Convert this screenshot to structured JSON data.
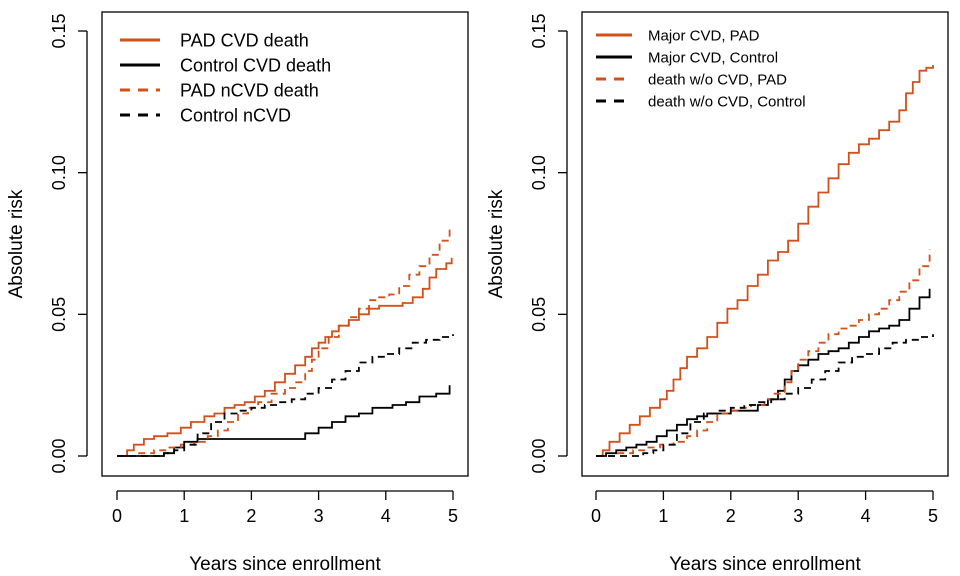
{
  "colors": {
    "pad": "#d2501a",
    "control": "#000000"
  },
  "chart_data": [
    {
      "type": "line",
      "xlabel": "Years since enrollment",
      "ylabel": "Absolute risk",
      "xlim": [
        0,
        5
      ],
      "ylim": [
        0,
        0.15
      ],
      "xticks": [
        "0",
        "1",
        "2",
        "3",
        "4",
        "5"
      ],
      "yticks": [
        "0.00",
        "0.05",
        "0.10",
        "0.15"
      ],
      "grid": false,
      "legend_position": "top-left",
      "series": [
        {
          "name": "PAD CVD death",
          "style": "solid",
          "color": "pad",
          "x": [
            0,
            0.15,
            0.25,
            0.4,
            0.55,
            0.75,
            0.95,
            1.1,
            1.3,
            1.45,
            1.6,
            1.75,
            1.9,
            2.05,
            2.2,
            2.35,
            2.5,
            2.65,
            2.8,
            2.9,
            3.0,
            3.1,
            3.2,
            3.3,
            3.45,
            3.6,
            3.75,
            3.9,
            4.05,
            4.25,
            4.4,
            4.55,
            4.65,
            4.75,
            4.9,
            4.98
          ],
          "y": [
            0,
            0.002,
            0.004,
            0.006,
            0.007,
            0.008,
            0.01,
            0.012,
            0.014,
            0.015,
            0.017,
            0.018,
            0.019,
            0.021,
            0.023,
            0.026,
            0.029,
            0.032,
            0.035,
            0.038,
            0.04,
            0.042,
            0.044,
            0.046,
            0.048,
            0.05,
            0.052,
            0.053,
            0.053,
            0.054,
            0.056,
            0.059,
            0.063,
            0.066,
            0.068,
            0.07
          ]
        },
        {
          "name": "Control CVD death",
          "style": "solid",
          "color": "control",
          "x": [
            0,
            0.7,
            0.85,
            1.0,
            1.2,
            1.7,
            2.0,
            2.6,
            2.8,
            3.0,
            3.2,
            3.4,
            3.6,
            3.8,
            4.1,
            4.3,
            4.5,
            4.75,
            4.95
          ],
          "y": [
            0,
            0.001,
            0.003,
            0.005,
            0.006,
            0.006,
            0.006,
            0.006,
            0.008,
            0.01,
            0.012,
            0.014,
            0.015,
            0.017,
            0.018,
            0.019,
            0.021,
            0.022,
            0.025
          ]
        },
        {
          "name": "PAD nCVD death",
          "style": "dashed",
          "color": "pad",
          "x": [
            0,
            0.3,
            0.55,
            0.75,
            0.95,
            1.15,
            1.35,
            1.5,
            1.65,
            1.8,
            1.95,
            2.1,
            2.3,
            2.5,
            2.65,
            2.8,
            2.9,
            3.0,
            3.15,
            3.3,
            3.45,
            3.6,
            3.75,
            3.9,
            4.05,
            4.2,
            4.35,
            4.5,
            4.65,
            4.8,
            4.95
          ],
          "y": [
            0,
            0.001,
            0.002,
            0.003,
            0.004,
            0.005,
            0.007,
            0.009,
            0.012,
            0.015,
            0.017,
            0.019,
            0.022,
            0.024,
            0.026,
            0.03,
            0.034,
            0.038,
            0.042,
            0.046,
            0.049,
            0.052,
            0.055,
            0.056,
            0.057,
            0.06,
            0.064,
            0.067,
            0.071,
            0.076,
            0.081
          ]
        },
        {
          "name": "Control nCVD",
          "style": "dashed",
          "color": "control",
          "x": [
            0,
            0.7,
            0.85,
            1.0,
            1.2,
            1.4,
            1.6,
            1.8,
            2.0,
            2.2,
            2.4,
            2.6,
            2.8,
            3.0,
            3.2,
            3.4,
            3.6,
            3.8,
            4.0,
            4.2,
            4.4,
            4.6,
            4.8,
            5.0
          ],
          "y": [
            0,
            0.001,
            0.002,
            0.004,
            0.008,
            0.012,
            0.015,
            0.016,
            0.017,
            0.018,
            0.019,
            0.02,
            0.022,
            0.024,
            0.027,
            0.03,
            0.033,
            0.035,
            0.036,
            0.038,
            0.04,
            0.041,
            0.042,
            0.043
          ]
        }
      ]
    },
    {
      "type": "line",
      "xlabel": "Years since enrollment",
      "ylabel": "Absolute risk",
      "xlim": [
        0,
        5
      ],
      "ylim": [
        0,
        0.15
      ],
      "xticks": [
        "0",
        "1",
        "2",
        "3",
        "4",
        "5"
      ],
      "yticks": [
        "0.00",
        "0.05",
        "0.10",
        "0.15"
      ],
      "grid": false,
      "legend_position": "top-left",
      "series": [
        {
          "name": "Major CVD, PAD",
          "style": "solid",
          "color": "pad",
          "x": [
            0,
            0.1,
            0.2,
            0.35,
            0.5,
            0.65,
            0.8,
            0.95,
            1.05,
            1.15,
            1.25,
            1.35,
            1.5,
            1.65,
            1.8,
            1.95,
            2.1,
            2.25,
            2.4,
            2.55,
            2.7,
            2.85,
            3.0,
            3.15,
            3.3,
            3.45,
            3.6,
            3.75,
            3.9,
            4.05,
            4.2,
            4.35,
            4.5,
            4.6,
            4.7,
            4.8,
            4.9,
            5.0
          ],
          "y": [
            0,
            0.002,
            0.005,
            0.008,
            0.011,
            0.014,
            0.017,
            0.02,
            0.023,
            0.027,
            0.031,
            0.035,
            0.038,
            0.042,
            0.047,
            0.052,
            0.055,
            0.06,
            0.064,
            0.069,
            0.072,
            0.076,
            0.082,
            0.088,
            0.093,
            0.098,
            0.103,
            0.107,
            0.11,
            0.112,
            0.115,
            0.118,
            0.122,
            0.128,
            0.132,
            0.136,
            0.137,
            0.138
          ]
        },
        {
          "name": "Major CVD, Control",
          "style": "solid",
          "color": "control",
          "x": [
            0,
            0.15,
            0.3,
            0.45,
            0.6,
            0.75,
            0.9,
            1.05,
            1.2,
            1.35,
            1.5,
            1.65,
            1.8,
            2.0,
            2.2,
            2.4,
            2.55,
            2.7,
            2.8,
            2.9,
            3.0,
            3.15,
            3.3,
            3.45,
            3.6,
            3.75,
            3.9,
            4.05,
            4.2,
            4.35,
            4.5,
            4.65,
            4.8,
            4.95
          ],
          "y": [
            0,
            0.001,
            0.002,
            0.003,
            0.004,
            0.005,
            0.007,
            0.009,
            0.011,
            0.013,
            0.014,
            0.015,
            0.015,
            0.016,
            0.016,
            0.018,
            0.02,
            0.023,
            0.027,
            0.03,
            0.032,
            0.034,
            0.036,
            0.037,
            0.038,
            0.04,
            0.042,
            0.044,
            0.045,
            0.046,
            0.048,
            0.052,
            0.056,
            0.059
          ]
        },
        {
          "name": "death w/o CVD, PAD",
          "style": "dashed",
          "color": "pad",
          "x": [
            0,
            0.3,
            0.55,
            0.75,
            0.95,
            1.15,
            1.35,
            1.5,
            1.65,
            1.8,
            1.95,
            2.1,
            2.3,
            2.5,
            2.65,
            2.8,
            2.9,
            3.0,
            3.15,
            3.3,
            3.45,
            3.6,
            3.75,
            3.9,
            4.05,
            4.2,
            4.35,
            4.5,
            4.65,
            4.8,
            4.95
          ],
          "y": [
            0,
            0.001,
            0.002,
            0.003,
            0.004,
            0.005,
            0.007,
            0.009,
            0.012,
            0.015,
            0.016,
            0.017,
            0.018,
            0.02,
            0.022,
            0.026,
            0.03,
            0.034,
            0.037,
            0.04,
            0.043,
            0.045,
            0.046,
            0.048,
            0.05,
            0.052,
            0.055,
            0.058,
            0.062,
            0.067,
            0.073
          ]
        },
        {
          "name": "death w/o CVD, Control",
          "style": "dashed",
          "color": "control",
          "x": [
            0,
            0.7,
            0.85,
            1.0,
            1.2,
            1.4,
            1.6,
            1.8,
            2.0,
            2.2,
            2.4,
            2.6,
            2.8,
            3.0,
            3.2,
            3.4,
            3.6,
            3.8,
            4.0,
            4.2,
            4.4,
            4.6,
            4.8,
            5.0
          ],
          "y": [
            0,
            0.001,
            0.002,
            0.004,
            0.008,
            0.012,
            0.015,
            0.016,
            0.017,
            0.018,
            0.019,
            0.02,
            0.022,
            0.024,
            0.027,
            0.03,
            0.033,
            0.035,
            0.036,
            0.038,
            0.04,
            0.041,
            0.042,
            0.043
          ]
        }
      ]
    }
  ]
}
